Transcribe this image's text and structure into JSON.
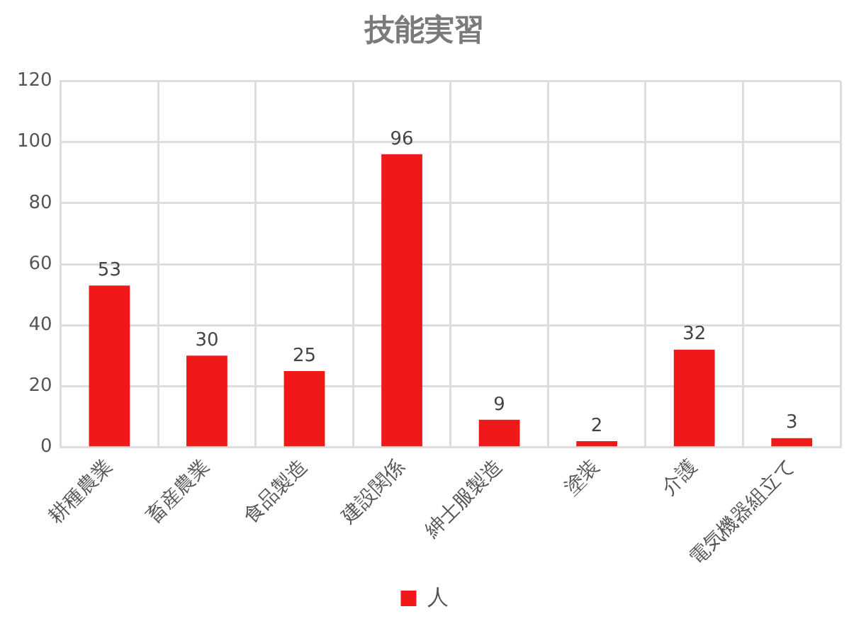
{
  "chart_data": {
    "type": "bar",
    "title": "技能実習",
    "categories": [
      "耕種農業",
      "畜産農業",
      "食品製造",
      "建設関係",
      "紳士服製造",
      "塗装",
      "介護",
      "電気機器組立て"
    ],
    "series": [
      {
        "name": "人",
        "color": "#f01818",
        "values": [
          53,
          30,
          25,
          96,
          9,
          2,
          32,
          3
        ]
      }
    ],
    "ylim": [
      0,
      120
    ],
    "yticks": [
      0,
      20,
      40,
      60,
      80,
      100,
      120
    ],
    "grid": true,
    "legend": "bottom",
    "data_labels": true
  }
}
